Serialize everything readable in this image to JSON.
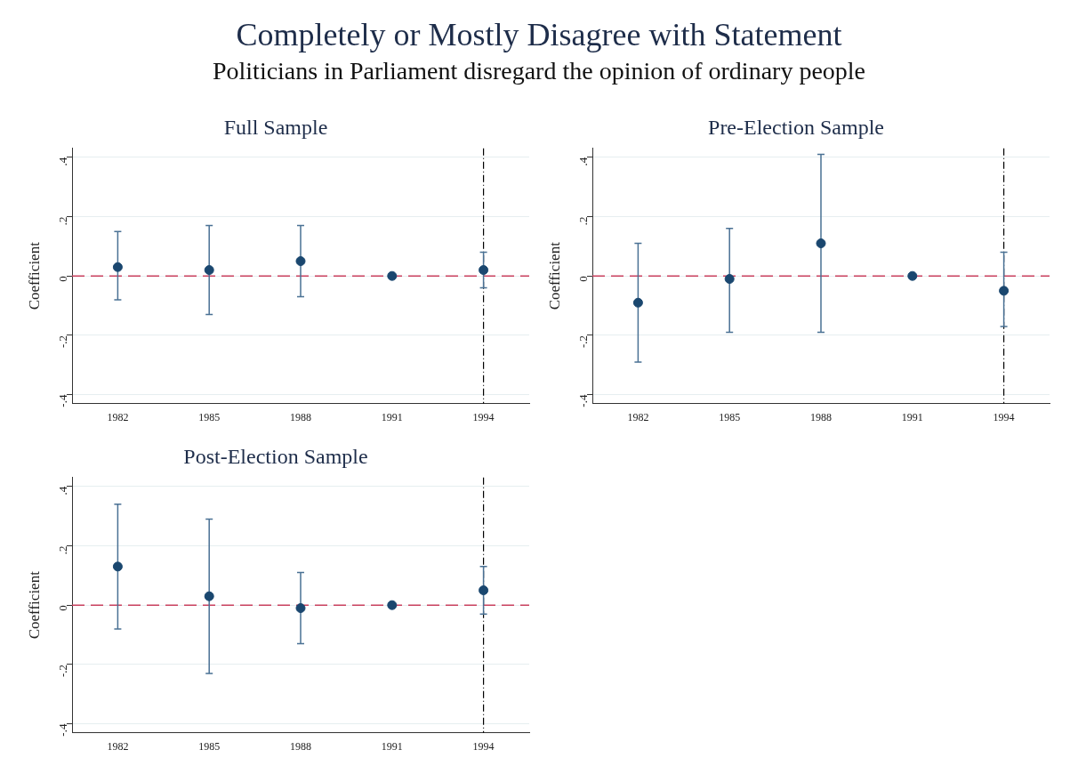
{
  "chart_data": [
    {
      "type": "other",
      "title": "Completely or Mostly Disagree with Statement",
      "subtitle": "Politicians in Parliament disregard the opinion of ordinary people"
    },
    {
      "type": "scatter",
      "title": "Full Sample",
      "ylabel": "Coefficient",
      "categories": [
        "1982",
        "1985",
        "1988",
        "1991",
        "1994"
      ],
      "series": [
        {
          "color": "#1a476f",
          "values": [
            0.03,
            0.02,
            0.05,
            0,
            0.02
          ],
          "errors": [
            [
              -0.08,
              0.15
            ],
            [
              -0.13,
              0.17
            ],
            [
              -0.07,
              0.17
            ],
            null,
            [
              -0.04,
              0.08
            ]
          ]
        }
      ],
      "ylim": [
        -0.43,
        0.43
      ],
      "yticks": [
        {
          "value": -0.4,
          "label": "-.4"
        },
        {
          "value": -0.2,
          "label": "-.2"
        },
        {
          "value": 0,
          "label": "0"
        },
        {
          "value": 0.2,
          "label": ".2"
        },
        {
          "value": 0.4,
          "label": ".4"
        }
      ],
      "ref_lines": [
        {
          "axis": "y",
          "value": 0,
          "color": "#c8405e",
          "line_style": "dashed"
        },
        {
          "axis": "x",
          "value": "1994",
          "color": "#000000",
          "line_style": "dashed"
        }
      ],
      "grid": "y",
      "legend": false,
      "marker": "circle"
    },
    {
      "type": "scatter",
      "title": "Pre-Election Sample",
      "ylabel": "Coefficient",
      "categories": [
        "1982",
        "1985",
        "1988",
        "1991",
        "1994"
      ],
      "series": [
        {
          "color": "#1a476f",
          "values": [
            -0.09,
            -0.01,
            0.11,
            0,
            -0.05
          ],
          "errors": [
            [
              -0.29,
              0.11
            ],
            [
              -0.19,
              0.16
            ],
            [
              -0.19,
              0.41
            ],
            null,
            [
              -0.17,
              0.08
            ]
          ]
        }
      ],
      "ylim": [
        -0.43,
        0.43
      ],
      "yticks": [
        {
          "value": -0.4,
          "label": "-.4"
        },
        {
          "value": -0.2,
          "label": "-.2"
        },
        {
          "value": 0,
          "label": "0"
        },
        {
          "value": 0.2,
          "label": ".2"
        },
        {
          "value": 0.4,
          "label": ".4"
        }
      ],
      "ref_lines": [
        {
          "axis": "y",
          "value": 0,
          "color": "#c8405e",
          "line_style": "dashed"
        },
        {
          "axis": "x",
          "value": "1994",
          "color": "#000000",
          "line_style": "dashed"
        }
      ],
      "grid": "y",
      "legend": false,
      "marker": "circle"
    },
    {
      "type": "scatter",
      "title": "Post-Election Sample",
      "ylabel": "Coefficient",
      "categories": [
        "1982",
        "1985",
        "1988",
        "1991",
        "1994"
      ],
      "series": [
        {
          "color": "#1a476f",
          "values": [
            0.13,
            0.03,
            -0.01,
            0,
            0.05
          ],
          "errors": [
            [
              -0.08,
              0.34
            ],
            [
              -0.23,
              0.29
            ],
            [
              -0.13,
              0.11
            ],
            null,
            [
              -0.03,
              0.13
            ]
          ]
        }
      ],
      "ylim": [
        -0.43,
        0.43
      ],
      "yticks": [
        {
          "value": -0.4,
          "label": "-.4"
        },
        {
          "value": -0.2,
          "label": "-.2"
        },
        {
          "value": 0,
          "label": "0"
        },
        {
          "value": 0.2,
          "label": ".2"
        },
        {
          "value": 0.4,
          "label": ".4"
        }
      ],
      "ref_lines": [
        {
          "axis": "y",
          "value": 0,
          "color": "#c8405e",
          "line_style": "dashed"
        },
        {
          "axis": "x",
          "value": "1994",
          "color": "#000000",
          "line_style": "dashed"
        }
      ],
      "grid": "y",
      "legend": false,
      "marker": "circle"
    }
  ]
}
